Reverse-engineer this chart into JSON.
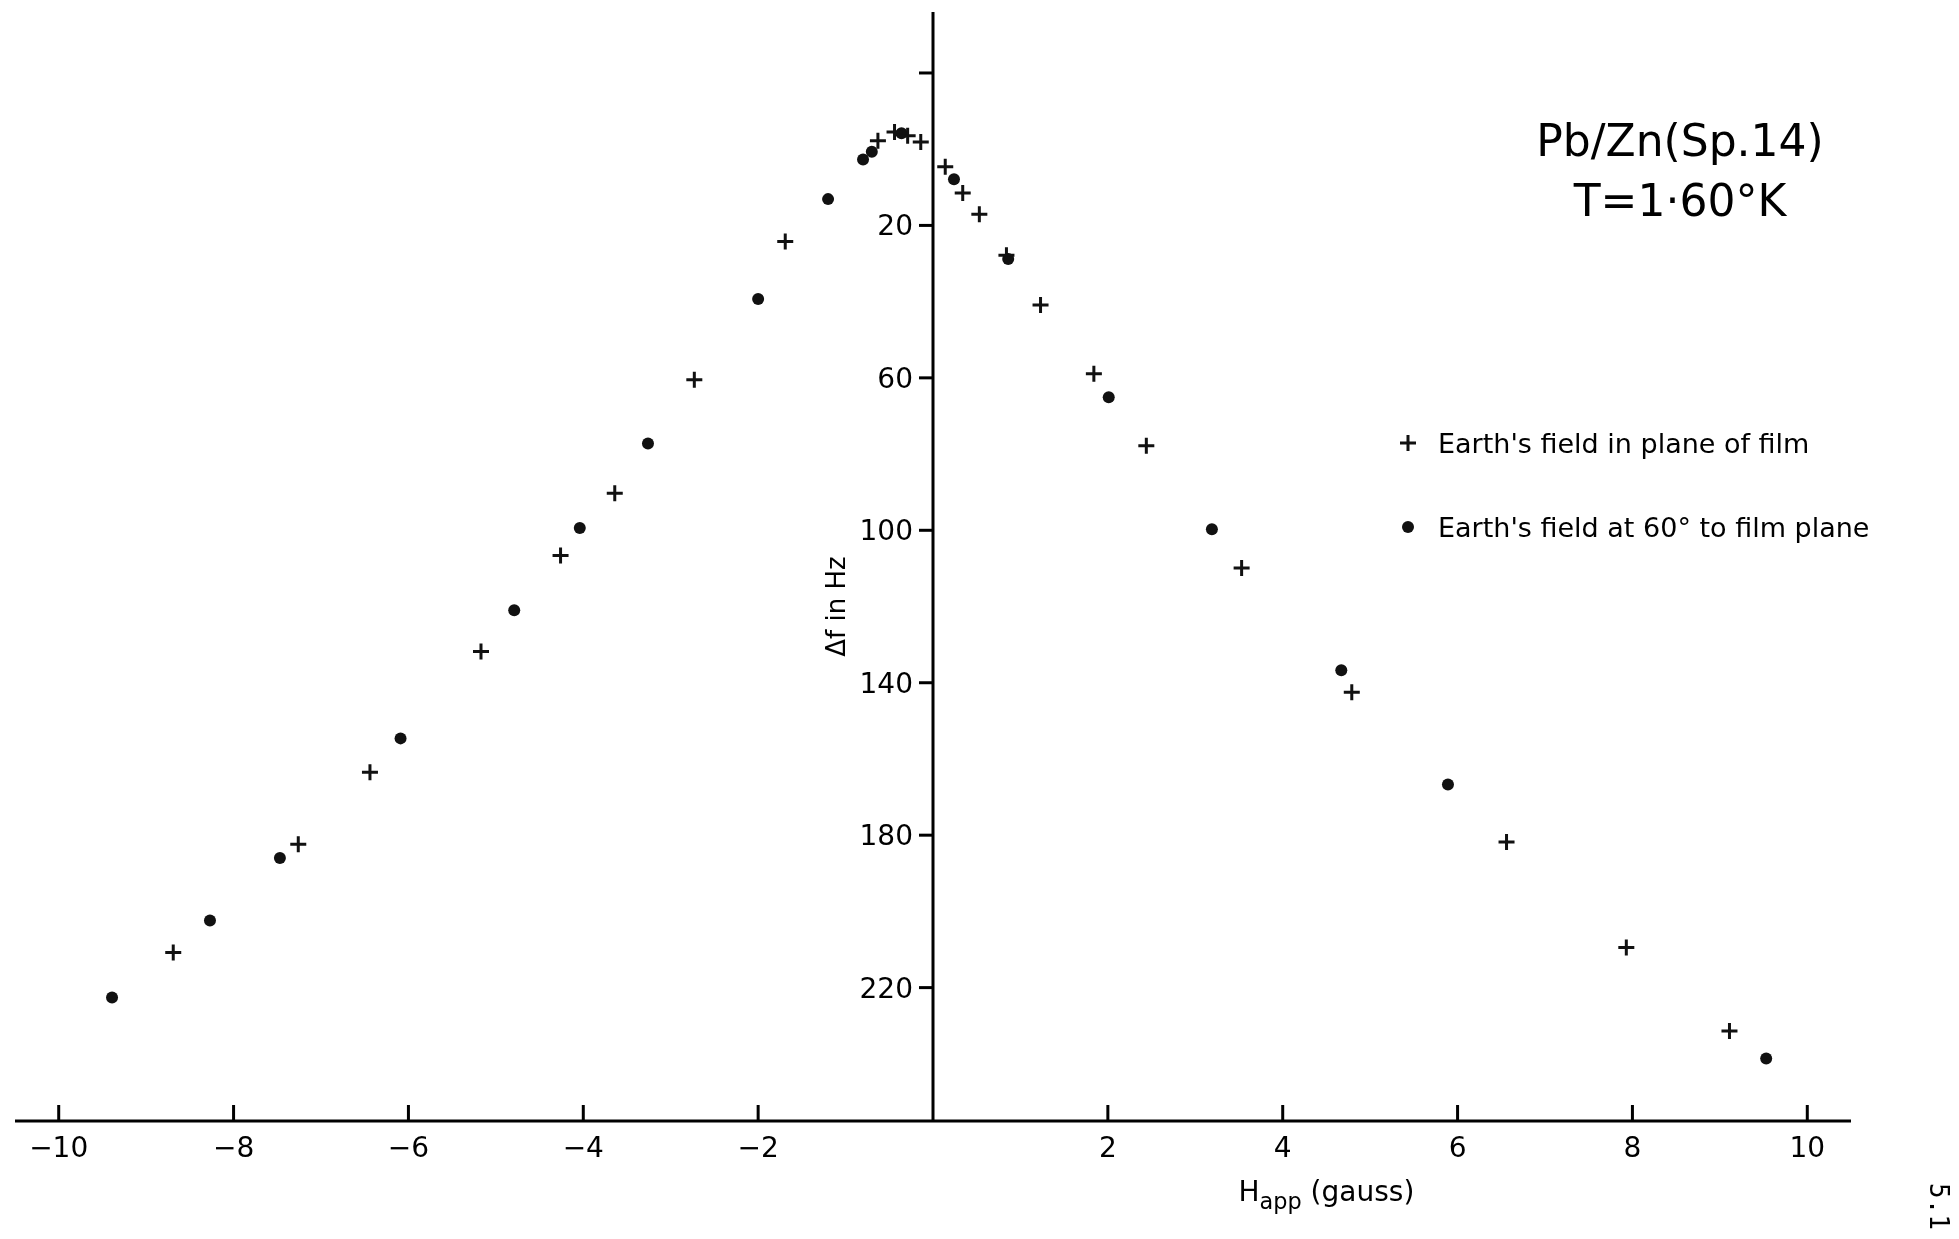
{
  "chart_data": {
    "type": "scatter",
    "title": "Pb/Zn(Sp.14)",
    "subtitle": "T=1·60°K",
    "xlabel": "H$_{app}$ (gauss)",
    "ylabel": "Δf  in Hz",
    "annotations": [
      "5.1"
    ],
    "xlim": [
      -10.5,
      10.5
    ],
    "xticks": [
      -10,
      -8,
      -6,
      -4,
      -2,
      2,
      4,
      6,
      8,
      10
    ],
    "ylim": [
      255,
      -36
    ],
    "yticks": [
      {
        "value": -20,
        "label": null
      },
      20,
      60,
      100,
      140,
      180,
      220
    ],
    "grid": false,
    "legend": "right",
    "series": [
      {
        "name": "Earth's field in plane of film",
        "color": "#111111",
        "marker": "cross",
        "x": [
          -8.69,
          -7.26,
          -6.44,
          -5.17,
          -4.26,
          -3.64,
          -2.73,
          -1.69,
          -0.63,
          -0.44,
          -0.29,
          -0.14,
          0.14,
          0.34,
          0.53,
          0.84,
          1.23,
          1.84,
          2.44,
          3.53,
          4.79,
          6.56,
          7.93,
          9.11
        ],
        "values": [
          210.8,
          182.4,
          163.5,
          131.8,
          106.6,
          90.3,
          60.5,
          24.2,
          -2.2,
          -4.5,
          -3.5,
          -1.9,
          4.6,
          11.5,
          17.1,
          27.8,
          40.9,
          58.9,
          77.8,
          109.9,
          142.5,
          181.8,
          209.5,
          231.4
        ]
      },
      {
        "name": "Earth's field at 60° to film plane",
        "color": "#111111",
        "marker": "circle",
        "x": [
          -9.39,
          -8.27,
          -7.47,
          -6.09,
          -4.79,
          -4.04,
          -3.26,
          -2.0,
          -1.2,
          -0.8,
          -0.7,
          -0.36,
          0.24,
          0.86,
          2.01,
          3.19,
          4.67,
          5.89,
          9.53
        ],
        "values": [
          222.6,
          202.4,
          186,
          154.6,
          121,
          99.4,
          77.2,
          39.3,
          13.1,
          2.7,
          0.7,
          -4.2,
          7.9,
          28.8,
          65.1,
          99.7,
          136.7,
          166.7,
          238.6
        ]
      }
    ]
  }
}
